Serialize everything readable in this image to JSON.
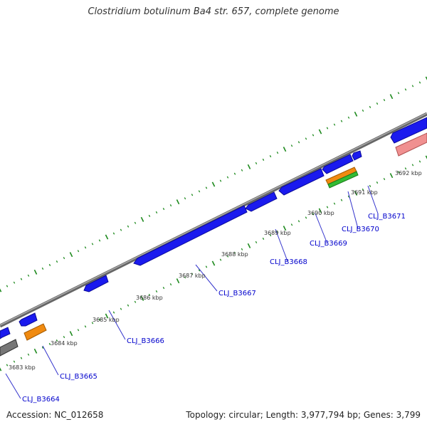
{
  "title": "Clostridium botulinum Ba4 str. 657, complete genome",
  "footer": {
    "accession": "Accession: NC_012658",
    "summary": "Topology: circular; Length: 3,977,794 bp; Genes: 3,799"
  },
  "colors": {
    "backbone": "#888888",
    "cds": "#1a1aee",
    "rrna": "#f08a10",
    "trna": "#33bb33",
    "pink": "#f09090",
    "gray": "#777777",
    "tick": "#1e8a1e",
    "label": "#0000cc"
  },
  "scale_labels": [
    "3683 kbp",
    "3684 kbp",
    "3685 kbp",
    "3686 kbp",
    "3687 kbp",
    "3688 kbp",
    "3689 kbp",
    "3690 kbp",
    "3691 kbp",
    "3692 kbp"
  ],
  "gene_labels": [
    "CLJ_B3664",
    "CLJ_B3665",
    "CLJ_B3666",
    "CLJ_B3667",
    "CLJ_B3668",
    "CLJ_B3669",
    "CLJ_B3670",
    "CLJ_B3671"
  ]
}
